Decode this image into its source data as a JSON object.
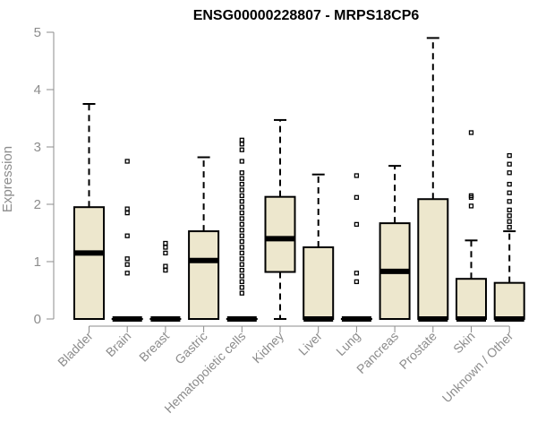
{
  "chart_data": {
    "type": "boxplot",
    "title": "ENSG00000228807 - MRPS18CP6",
    "ylabel": "Expression",
    "xlabel": "",
    "ylim": [
      0,
      5
    ],
    "yticks": [
      "0",
      "1",
      "2",
      "3",
      "4",
      "5"
    ],
    "grid": false,
    "box_color": "#ede7cd",
    "categories": [
      "Bladder",
      "Brain",
      "Breast",
      "Gastric",
      "Hematopoietic cells",
      "Kidney",
      "Liver",
      "Lung",
      "Pancreas",
      "Prostate",
      "Skin",
      "Unknown / Other"
    ],
    "boxes": [
      {
        "q1": 0,
        "median": 1.15,
        "q3": 1.95,
        "whisker_low": 0,
        "whisker_high": 3.75,
        "outliers": []
      },
      {
        "q1": 0,
        "median": 0,
        "q3": 0,
        "whisker_low": 0,
        "whisker_high": 0,
        "outliers": [
          0.8,
          0.95,
          1.05,
          1.45,
          1.85,
          1.92,
          2.75
        ]
      },
      {
        "q1": 0,
        "median": 0,
        "q3": 0,
        "whisker_low": 0,
        "whisker_high": 0,
        "outliers": [
          0.85,
          0.92,
          1.15,
          1.25,
          1.32
        ]
      },
      {
        "q1": 0,
        "median": 1.02,
        "q3": 1.53,
        "whisker_low": 0,
        "whisker_high": 2.82,
        "outliers": []
      },
      {
        "q1": 0,
        "median": 0,
        "q3": 0,
        "whisker_low": 0,
        "whisker_high": 0,
        "outliers": [
          0.45,
          0.55,
          0.65,
          0.75,
          0.85,
          0.95,
          1.05,
          1.15,
          1.25,
          1.35,
          1.45,
          1.55,
          1.65,
          1.75,
          1.85,
          1.95,
          2.05,
          2.15,
          2.25,
          2.35,
          2.45,
          2.55,
          2.75,
          2.95,
          3.05,
          3.12
        ]
      },
      {
        "q1": 0.82,
        "median": 1.4,
        "q3": 2.13,
        "whisker_low": 0,
        "whisker_high": 3.47,
        "outliers": []
      },
      {
        "q1": 0,
        "median": 0,
        "q3": 1.25,
        "whisker_low": 0,
        "whisker_high": 2.52,
        "outliers": []
      },
      {
        "q1": 0,
        "median": 0,
        "q3": 0,
        "whisker_low": 0,
        "whisker_high": 0,
        "outliers": [
          0.65,
          0.8,
          1.65,
          2.12,
          2.5
        ]
      },
      {
        "q1": 0,
        "median": 0.83,
        "q3": 1.67,
        "whisker_low": 0,
        "whisker_high": 2.67,
        "outliers": []
      },
      {
        "q1": 0,
        "median": 0,
        "q3": 2.09,
        "whisker_low": 0,
        "whisker_high": 4.9,
        "outliers": []
      },
      {
        "q1": 0,
        "median": 0,
        "q3": 0.7,
        "whisker_low": 0,
        "whisker_high": 1.37,
        "outliers": [
          1.97,
          2.12,
          2.15,
          3.25
        ]
      },
      {
        "q1": 0,
        "median": 0,
        "q3": 0.63,
        "whisker_low": 0,
        "whisker_high": 1.53,
        "outliers": [
          1.6,
          1.7,
          1.8,
          1.9,
          2.05,
          2.2,
          2.35,
          2.55,
          2.7,
          2.85
        ]
      }
    ]
  }
}
